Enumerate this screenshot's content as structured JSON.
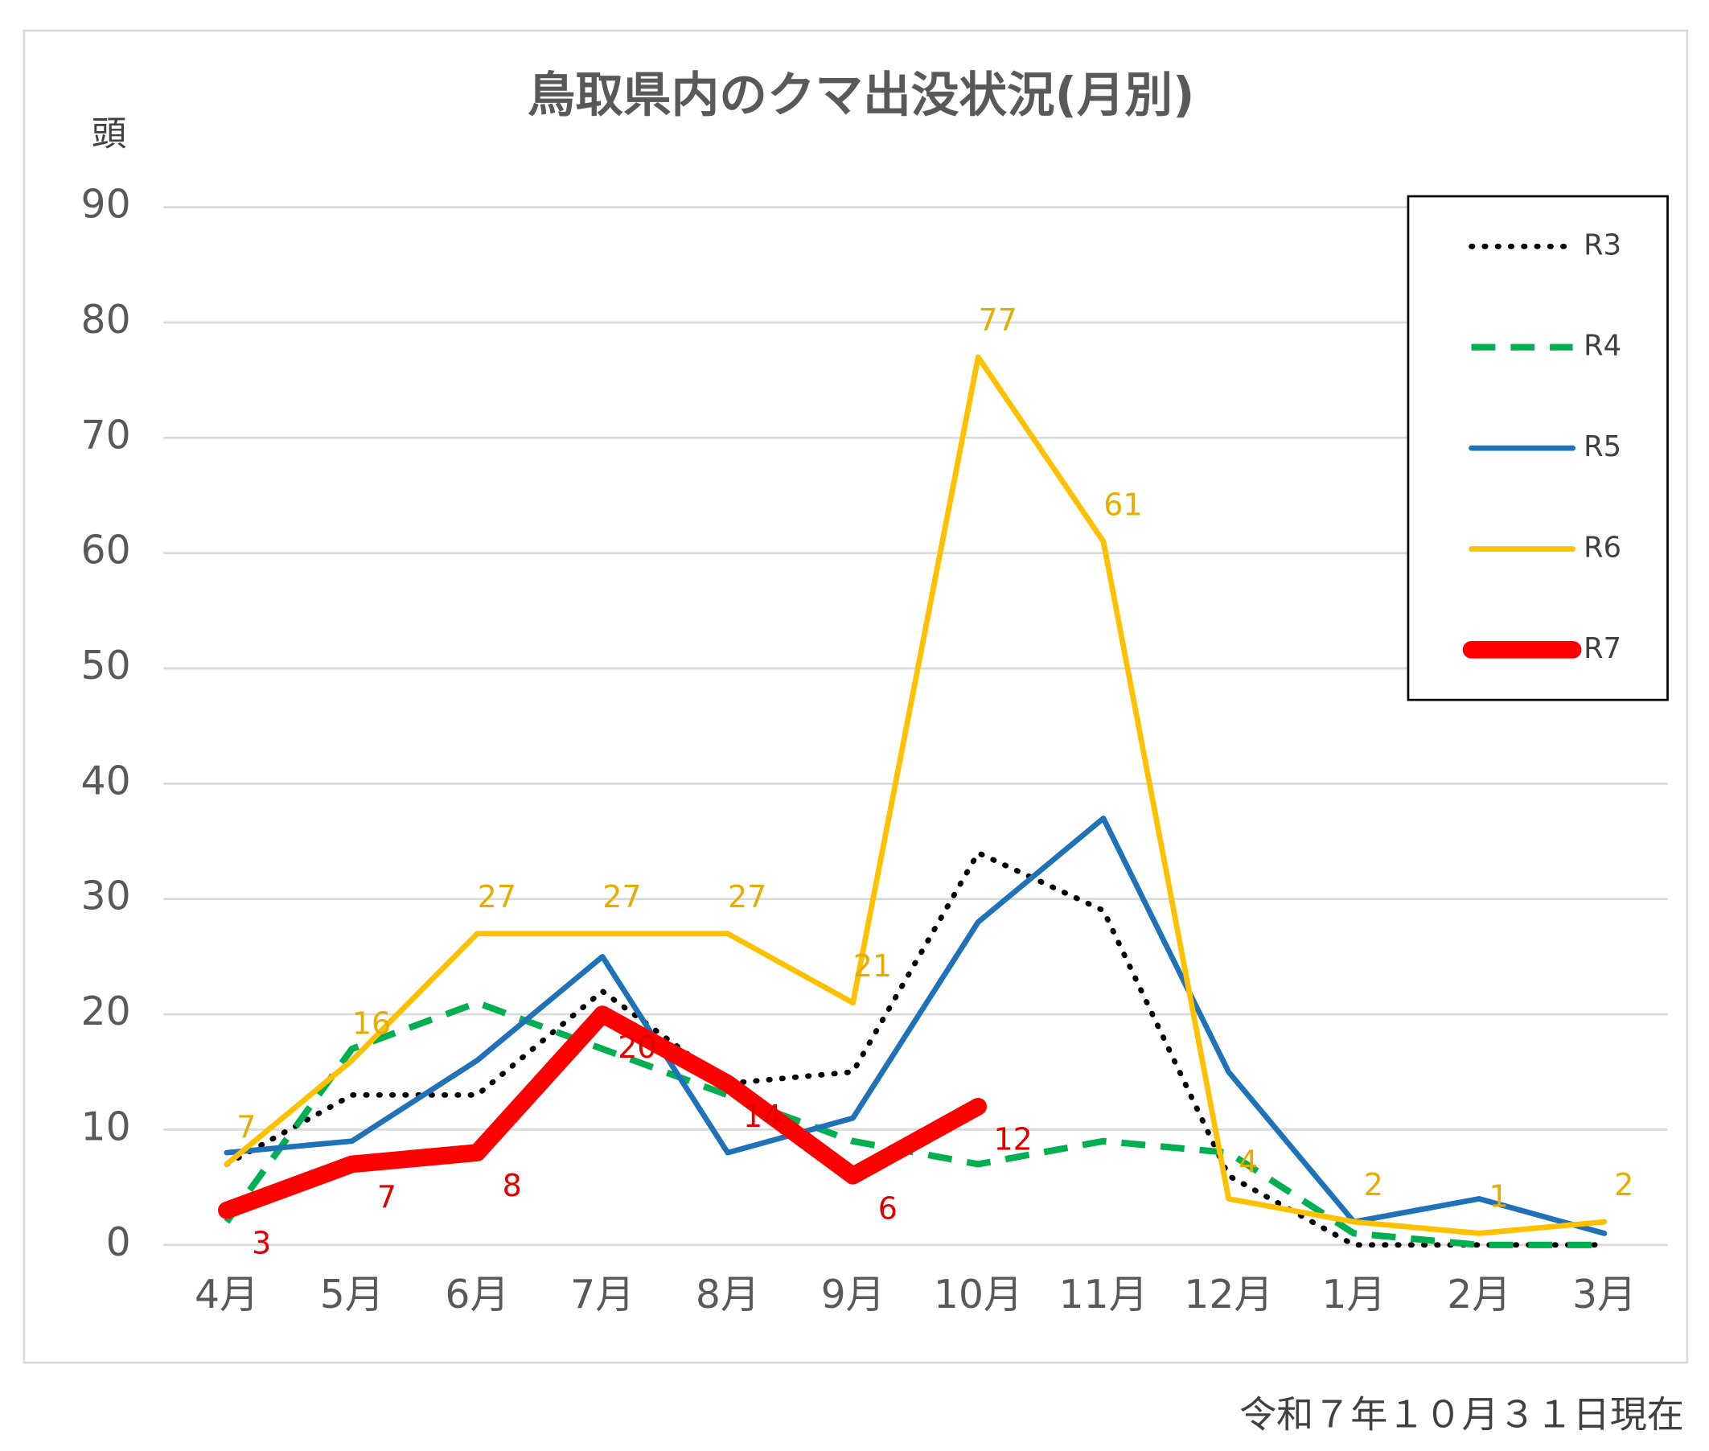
{
  "chart_data": {
    "type": "line",
    "title": "鳥取県内のクマ出没状況(月別)",
    "y_label": "頭",
    "note": "令和７年１０月３１日現在",
    "categories": [
      "4月",
      "5月",
      "6月",
      "7月",
      "8月",
      "9月",
      "10月",
      "11月",
      "12月",
      "1月",
      "2月",
      "3月"
    ],
    "ylim": [
      0,
      90
    ],
    "yticks": [
      0,
      10,
      20,
      30,
      40,
      50,
      60,
      70,
      80,
      90
    ],
    "grid": true,
    "legend": "upper right",
    "series": [
      {
        "name": "R3",
        "color": "#000000",
        "values": [
          7,
          13,
          13,
          22,
          14,
          15,
          34,
          29,
          6,
          0,
          0,
          0
        ]
      },
      {
        "name": "R4",
        "color": "#00b050",
        "values": [
          2,
          17,
          21,
          17,
          13,
          9,
          7,
          9,
          8,
          1,
          0,
          0
        ]
      },
      {
        "name": "R5",
        "color": "#1f71b8",
        "values": [
          8,
          9,
          16,
          25,
          8,
          11,
          28,
          37,
          15,
          2,
          4,
          1
        ]
      },
      {
        "name": "R6",
        "color": "#ffc000",
        "values": [
          7,
          16,
          27,
          27,
          27,
          21,
          77,
          61,
          4,
          2,
          1,
          2
        ]
      },
      {
        "name": "R7",
        "color": "#ff0000",
        "values": [
          3,
          7,
          8,
          20,
          14,
          6,
          12,
          null,
          null,
          null,
          null,
          null
        ]
      }
    ]
  }
}
